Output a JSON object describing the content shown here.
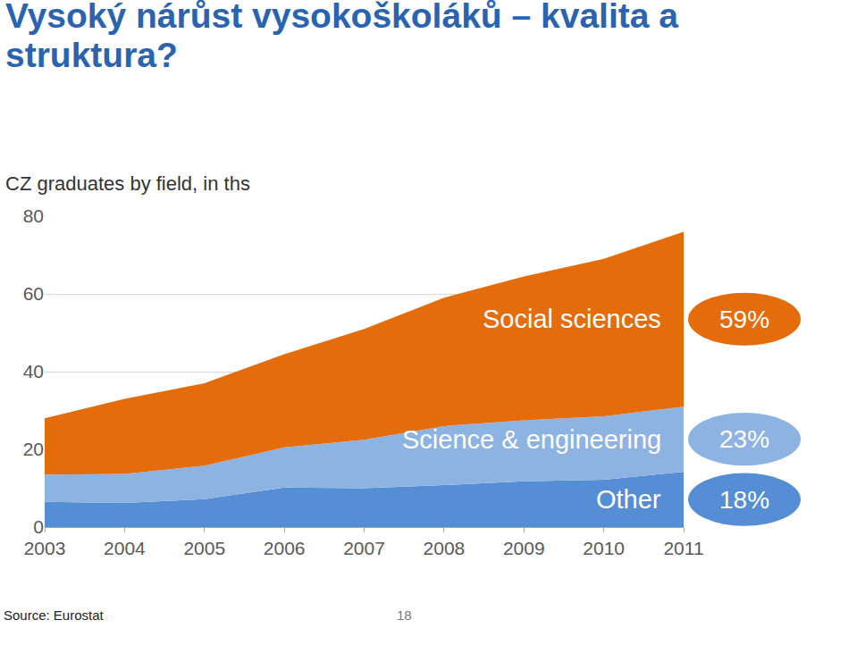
{
  "chart_data": {
    "type": "area",
    "title": "Vysoký nárůst vysokoškoláků – kvalita a struktura?",
    "subtitle": "CZ graduates by field, in ths",
    "source": "Source: Eurostat",
    "page_number": "18",
    "stacked": true,
    "grid": true,
    "categories": [
      "2003",
      "2004",
      "2005",
      "2006",
      "2007",
      "2008",
      "2009",
      "2010",
      "2011"
    ],
    "series": [
      {
        "name": "Other",
        "color": "#558ed5",
        "share": 18,
        "share_label": "18%",
        "values": [
          6.5,
          6.2,
          7.2,
          10.2,
          10.0,
          10.8,
          11.8,
          12.2,
          14.2
        ]
      },
      {
        "name": "Science & engineering",
        "color": "#8db3e2",
        "share": 23,
        "share_label": "23%",
        "values": [
          7.0,
          7.5,
          8.6,
          10.3,
          12.5,
          15.2,
          15.7,
          16.3,
          16.8
        ]
      },
      {
        "name": "Social sciences",
        "color": "#e46c0a",
        "share": 59,
        "share_label": "59%",
        "values": [
          14.5,
          19.3,
          21.2,
          24.0,
          28.5,
          33.0,
          37.0,
          40.5,
          45.0
        ]
      }
    ],
    "ylim": [
      0,
      80
    ],
    "yticks": [
      0,
      20,
      40,
      60,
      80
    ]
  }
}
